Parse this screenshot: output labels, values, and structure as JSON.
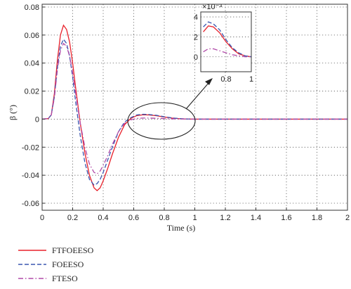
{
  "chart_data": {
    "type": "line",
    "xlabel": "Time (s)",
    "ylabel": "β (°)",
    "xlim": [
      0,
      2
    ],
    "ylim": [
      -0.065,
      0.082
    ],
    "grid": true,
    "legend_placement": "bottom-left",
    "x_ticks": [
      "0",
      "0.2",
      "0.4",
      "0.6",
      "0.8",
      "1",
      "1.2",
      "1.4",
      "1.6",
      "1.8",
      "2"
    ],
    "y_ticks": [
      "-0.06",
      "-0.04",
      "-0.02",
      "0",
      "0.02",
      "0.04",
      "0.06",
      "0.08"
    ],
    "series": [
      {
        "name": "FTFOEESO",
        "color": "#e8202a",
        "dash": "solid",
        "x": [
          0,
          0.04,
          0.06,
          0.08,
          0.1,
          0.12,
          0.14,
          0.16,
          0.18,
          0.2,
          0.22,
          0.25,
          0.28,
          0.31,
          0.34,
          0.36,
          0.38,
          0.4,
          0.43,
          0.46,
          0.5,
          0.54,
          0.58,
          0.62,
          0.66,
          0.7,
          0.75,
          0.8,
          0.85,
          0.9,
          0.95,
          1.0,
          1.1,
          1.2,
          1.4,
          1.6,
          1.8,
          2.0
        ],
        "y": [
          0,
          0.0004,
          0.003,
          0.018,
          0.042,
          0.06,
          0.067,
          0.064,
          0.055,
          0.04,
          0.022,
          -0.003,
          -0.024,
          -0.04,
          -0.049,
          -0.051,
          -0.049,
          -0.044,
          -0.035,
          -0.025,
          -0.013,
          -0.004,
          0.0005,
          0.0025,
          0.0031,
          0.003,
          0.0024,
          0.0015,
          0.0008,
          0.0003,
          0.0001,
          0,
          0,
          0,
          0,
          0,
          0,
          0
        ]
      },
      {
        "name": "FOEESO",
        "color": "#3a56b0",
        "dash": "dashed",
        "x": [
          0,
          0.04,
          0.06,
          0.08,
          0.1,
          0.12,
          0.14,
          0.16,
          0.18,
          0.2,
          0.22,
          0.25,
          0.28,
          0.31,
          0.34,
          0.36,
          0.38,
          0.4,
          0.43,
          0.46,
          0.5,
          0.54,
          0.58,
          0.62,
          0.66,
          0.7,
          0.75,
          0.8,
          0.85,
          0.9,
          0.95,
          1.0,
          1.1,
          1.2,
          1.4,
          1.6,
          1.8,
          2.0
        ],
        "y": [
          0,
          0.0004,
          0.003,
          0.016,
          0.037,
          0.052,
          0.057,
          0.054,
          0.045,
          0.03,
          0.012,
          -0.012,
          -0.031,
          -0.043,
          -0.047,
          -0.046,
          -0.043,
          -0.038,
          -0.029,
          -0.02,
          -0.009,
          -0.002,
          0.001,
          0.003,
          0.0035,
          0.0033,
          0.0027,
          0.0017,
          0.0009,
          0.0004,
          0.0001,
          0,
          0,
          0,
          0,
          0,
          0,
          0
        ]
      },
      {
        "name": "FTESO",
        "color": "#b04aa8",
        "dash": "dashdot",
        "x": [
          0,
          0.04,
          0.06,
          0.08,
          0.1,
          0.12,
          0.14,
          0.16,
          0.18,
          0.2,
          0.22,
          0.25,
          0.28,
          0.31,
          0.34,
          0.36,
          0.38,
          0.4,
          0.43,
          0.46,
          0.5,
          0.54,
          0.58,
          0.62,
          0.66,
          0.7,
          0.75,
          0.8,
          0.85,
          0.9,
          0.95,
          1.0,
          1.1,
          1.2,
          1.4,
          1.6,
          1.8,
          2.0
        ],
        "y": [
          0,
          0.0004,
          0.003,
          0.015,
          0.035,
          0.049,
          0.054,
          0.052,
          0.045,
          0.033,
          0.018,
          -0.003,
          -0.02,
          -0.032,
          -0.038,
          -0.039,
          -0.037,
          -0.033,
          -0.026,
          -0.018,
          -0.009,
          -0.003,
          -0.0005,
          0.0005,
          0.0008,
          0.0008,
          0.0006,
          0.0004,
          0.0002,
          0.0001,
          0,
          0,
          0,
          0,
          0,
          0,
          0,
          0
        ]
      }
    ],
    "inset": {
      "x_range": [
        0.6,
        1.0
      ],
      "y_range": [
        -0.0015,
        0.0045
      ],
      "x_ticks": [
        "0.8",
        "1"
      ],
      "y_ticks": [
        "0",
        "2",
        "4"
      ],
      "y_multiplier_label": "×10⁻³"
    }
  }
}
